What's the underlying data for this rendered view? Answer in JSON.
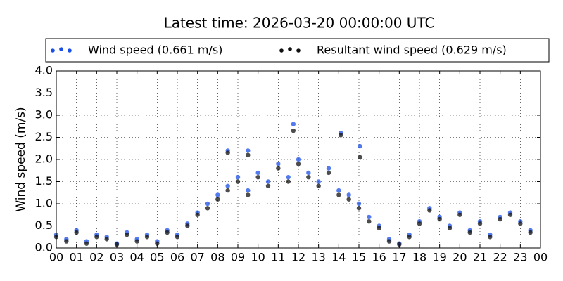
{
  "chart_data": {
    "type": "scatter",
    "title": "Latest time: 2026-03-20 00:00:00 UTC",
    "y_label": "Wind speed (m/s)",
    "x": [
      0,
      0.5,
      1,
      1.5,
      2,
      2.5,
      3,
      3.5,
      4,
      4.5,
      5,
      5.5,
      6,
      6.5,
      7,
      7.5,
      8,
      8.5,
      9,
      9.5,
      10,
      10.5,
      11,
      11.5,
      12,
      12.5,
      13,
      13.5,
      14,
      14.5,
      15,
      15.5,
      16,
      16.5,
      17,
      17.5,
      18,
      18.5,
      19,
      19.5,
      20,
      20.5,
      21,
      21.5,
      22,
      22.5,
      23,
      23.5,
      11.75,
      14.1,
      15.05,
      8.5,
      9.5
    ],
    "series": [
      {
        "name": "Wind speed (0.661 m/s)",
        "color": "#1a4fe8",
        "values": [
          0.3,
          0.2,
          0.4,
          0.15,
          0.3,
          0.25,
          0.1,
          0.35,
          0.2,
          0.3,
          0.15,
          0.4,
          0.3,
          0.55,
          0.8,
          1.0,
          1.2,
          1.4,
          1.6,
          1.3,
          1.7,
          1.5,
          1.9,
          1.6,
          2.0,
          1.7,
          1.5,
          1.8,
          1.3,
          1.2,
          1.0,
          0.7,
          0.5,
          0.2,
          0.1,
          0.3,
          0.6,
          0.9,
          0.7,
          0.5,
          0.8,
          0.4,
          0.6,
          0.3,
          0.7,
          0.8,
          0.6,
          0.4,
          2.8,
          2.6,
          2.3,
          2.2,
          2.2
        ]
      },
      {
        "name": "Resultant wind speed (0.629 m/s)",
        "color": "#111111",
        "values": [
          0.25,
          0.15,
          0.35,
          0.1,
          0.25,
          0.2,
          0.08,
          0.3,
          0.15,
          0.25,
          0.1,
          0.35,
          0.25,
          0.5,
          0.75,
          0.9,
          1.1,
          1.3,
          1.5,
          1.2,
          1.6,
          1.4,
          1.8,
          1.5,
          1.9,
          1.6,
          1.4,
          1.7,
          1.2,
          1.1,
          0.9,
          0.6,
          0.45,
          0.15,
          0.08,
          0.25,
          0.55,
          0.85,
          0.65,
          0.45,
          0.75,
          0.35,
          0.55,
          0.25,
          0.65,
          0.75,
          0.55,
          0.35,
          2.65,
          2.55,
          2.05,
          2.15,
          2.1
        ]
      }
    ],
    "xlim": [
      0,
      24
    ],
    "xticks": [
      {
        "value": 0,
        "label": "00"
      },
      {
        "value": 1,
        "label": "01"
      },
      {
        "value": 2,
        "label": "02"
      },
      {
        "value": 3,
        "label": "03"
      },
      {
        "value": 4,
        "label": "04"
      },
      {
        "value": 5,
        "label": "05"
      },
      {
        "value": 6,
        "label": "06"
      },
      {
        "value": 7,
        "label": "07"
      },
      {
        "value": 8,
        "label": "08"
      },
      {
        "value": 9,
        "label": "09"
      },
      {
        "value": 10,
        "label": "10"
      },
      {
        "value": 11,
        "label": "11"
      },
      {
        "value": 12,
        "label": "12"
      },
      {
        "value": 13,
        "label": "13"
      },
      {
        "value": 14,
        "label": "14"
      },
      {
        "value": 15,
        "label": "15"
      },
      {
        "value": 16,
        "label": "16"
      },
      {
        "value": 17,
        "label": "17"
      },
      {
        "value": 18,
        "label": "18"
      },
      {
        "value": 19,
        "label": "19"
      },
      {
        "value": 20,
        "label": "20"
      },
      {
        "value": 21,
        "label": "21"
      },
      {
        "value": 22,
        "label": "22"
      },
      {
        "value": 23,
        "label": "23"
      },
      {
        "value": 24,
        "label": "00"
      }
    ],
    "ylim": [
      0,
      4
    ],
    "yticks": [
      {
        "value": 0,
        "label": "0.0"
      },
      0.5,
      {
        "value": 1,
        "label": "1.0"
      },
      1.5,
      {
        "value": 2,
        "label": "2.0"
      },
      2.5,
      {
        "value": 3,
        "label": "3.0"
      },
      3.5,
      {
        "value": 4,
        "label": "4.0"
      }
    ],
    "grid": true
  }
}
